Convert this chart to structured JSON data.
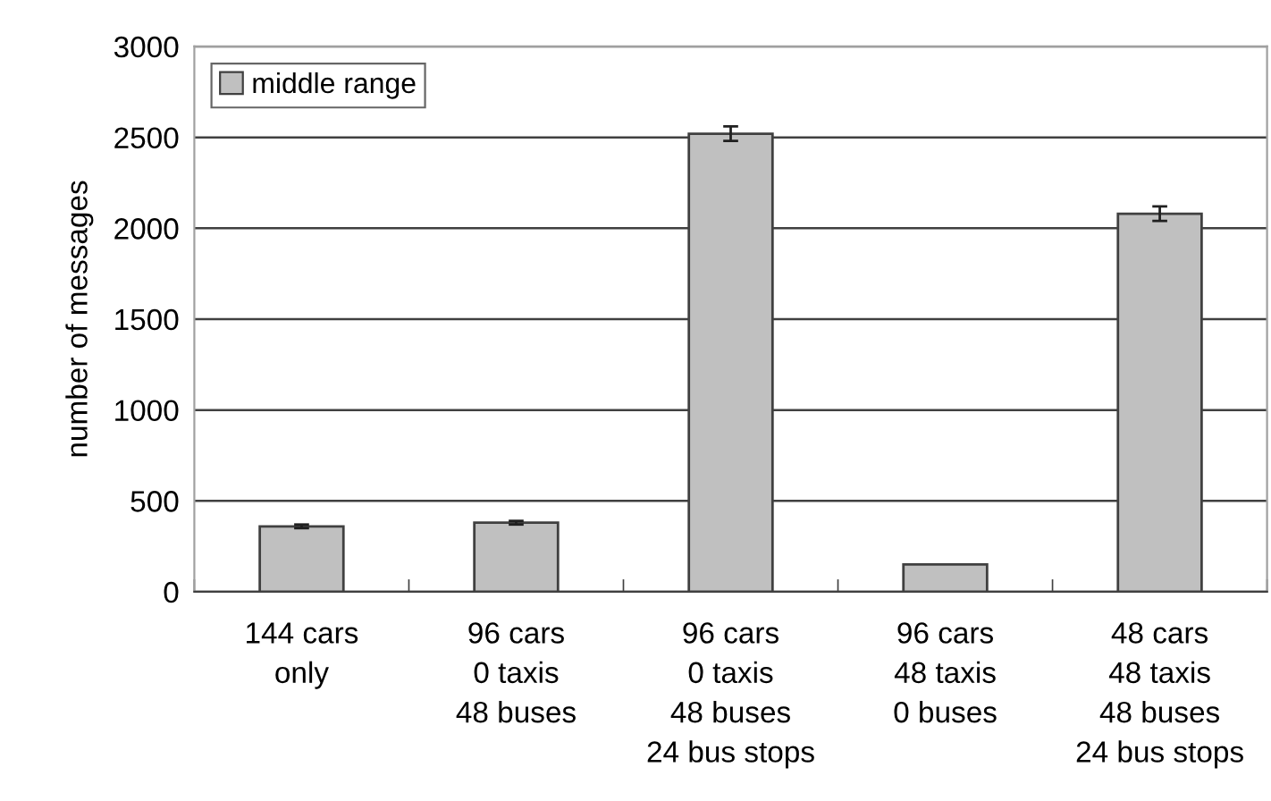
{
  "chart_data": {
    "type": "bar",
    "ylabel": "number of messages",
    "categories": [
      "144 cars\nonly",
      "96 cars\n0 taxis\n48 buses",
      "96 cars\n0 taxis\n48 buses\n24 bus stops",
      "96 cars\n48 taxis\n0 buses",
      "48 cars\n48 taxis\n48 buses\n24 bus stops"
    ],
    "series": [
      {
        "name": "middle range",
        "color": "#c0c0c0",
        "values": [
          360,
          380,
          2520,
          150,
          2080
        ],
        "errors": [
          10,
          10,
          40,
          null,
          40
        ]
      }
    ],
    "ylim": [
      0,
      3000
    ],
    "yticks": [
      0,
      500,
      1000,
      1500,
      2000,
      2500,
      3000
    ],
    "grid": "y",
    "legend": "top left"
  }
}
